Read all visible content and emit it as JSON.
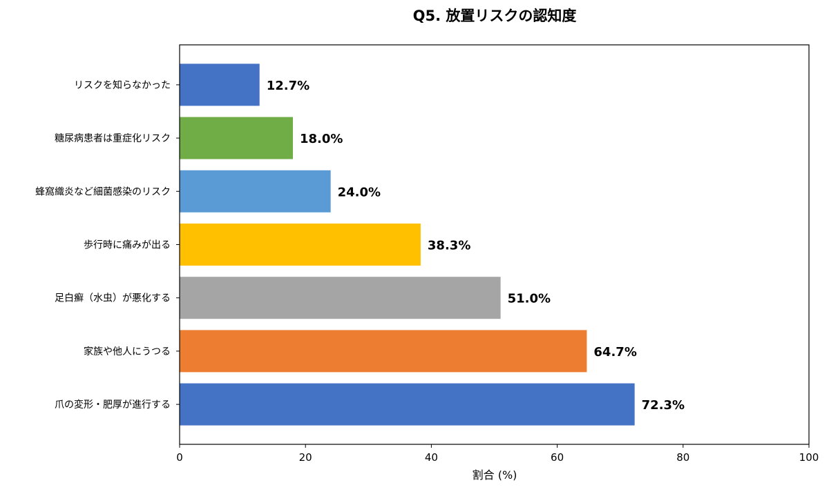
{
  "chart_data": {
    "type": "bar",
    "orientation": "horizontal",
    "title": "Q5. 放置リスクの認知度",
    "xlabel": "割合 (%)",
    "ylabel": "",
    "xlim": [
      0,
      100
    ],
    "xticks": [
      "0",
      "20",
      "40",
      "60",
      "80",
      "100"
    ],
    "grid": false,
    "categories": [
      "リスクを知らなかった",
      "糖尿病患者は重症化リスク",
      "蜂窩織炎など細菌感染のリスク",
      "歩行時に痛みが出る",
      "足白癬（水虫）が悪化する",
      "家族や他人にうつる",
      "爪の変形・肥厚が進行する"
    ],
    "values": [
      12.7,
      18.0,
      24.0,
      38.3,
      51.0,
      64.7,
      72.3
    ],
    "value_labels": [
      "12.7%",
      "18.0%",
      "24.0%",
      "38.3%",
      "51.0%",
      "64.7%",
      "72.3%"
    ],
    "colors": [
      "#4472C4",
      "#70AD47",
      "#5B9BD5",
      "#FFC000",
      "#A5A5A5",
      "#ED7D31",
      "#4472C4"
    ]
  }
}
